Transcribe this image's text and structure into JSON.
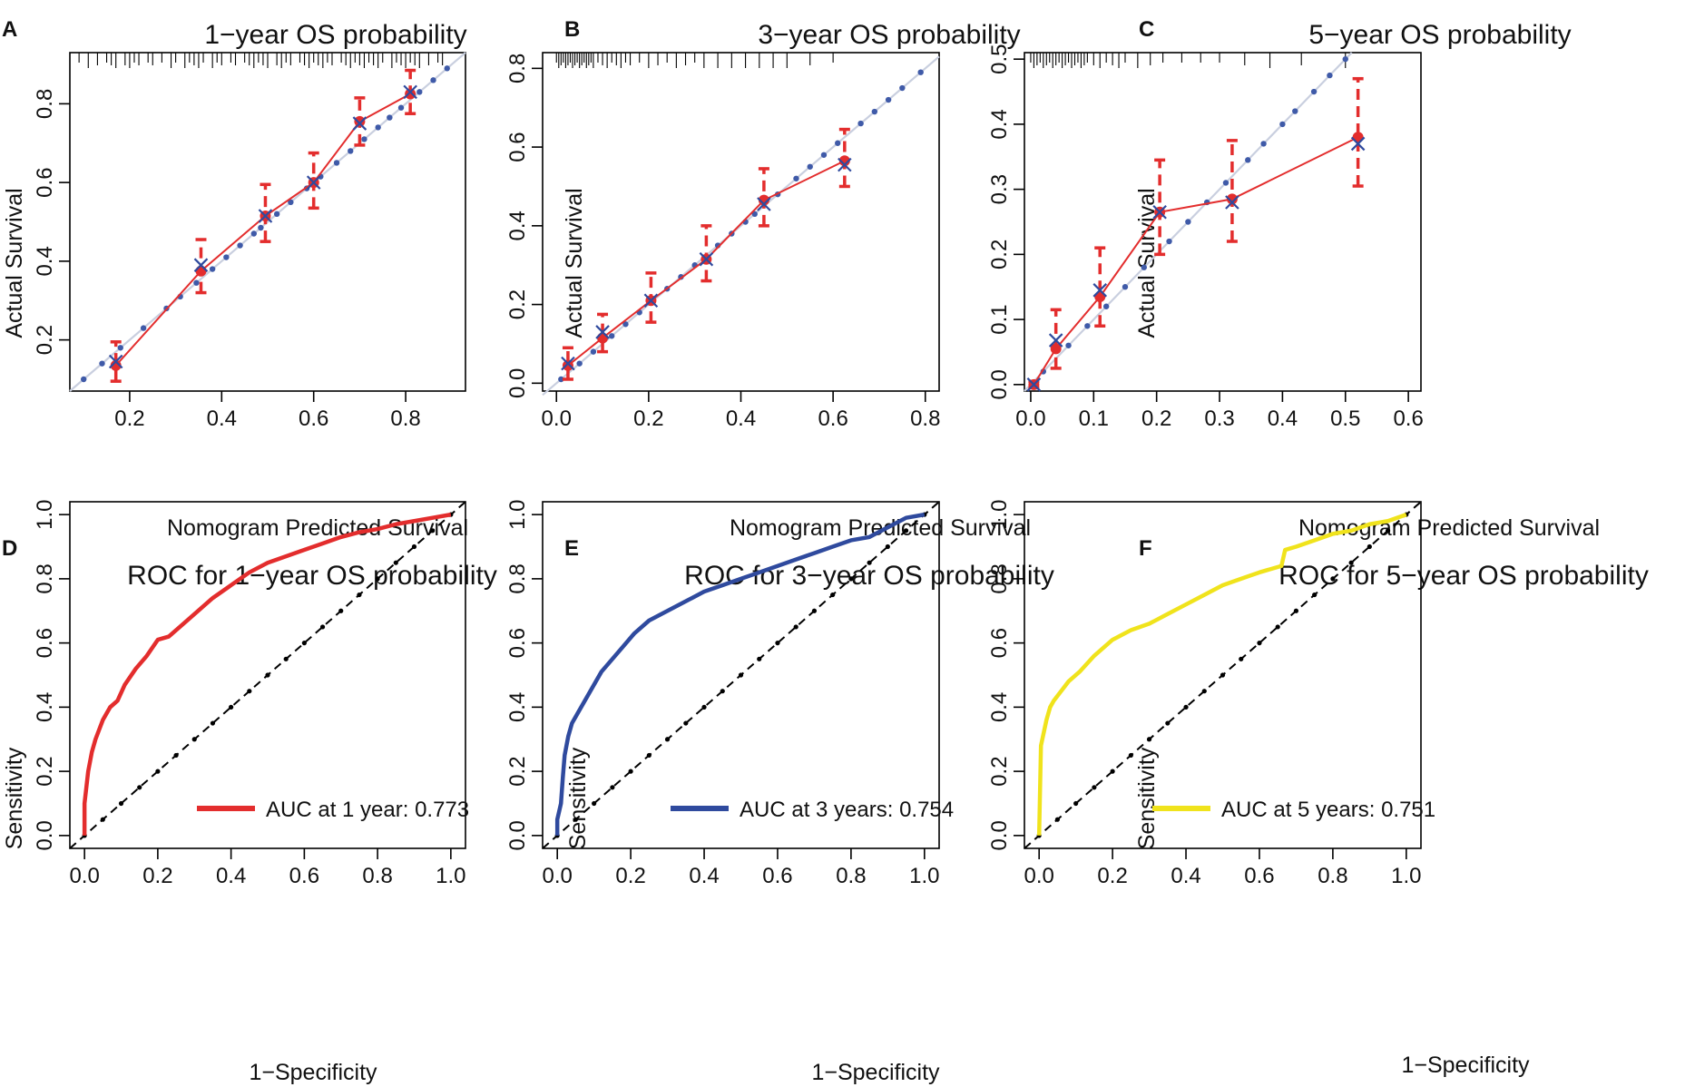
{
  "chart_data": [
    {
      "panel": "A",
      "type": "scatter",
      "title": "1−year OS probability",
      "xlabel": "Nomogram Predicted Survival",
      "ylabel": "Actual Survival",
      "xlim": [
        0.07,
        0.93
      ],
      "ylim": [
        0.07,
        0.93
      ],
      "xticks": [
        "0.2",
        "0.4",
        "0.6",
        "0.8"
      ],
      "yticks": [
        "0.2",
        "0.4",
        "0.6",
        "0.8"
      ],
      "ideal_line": [
        [
          0.07,
          0.07
        ],
        [
          0.93,
          0.93
        ]
      ],
      "series": [
        {
          "name": "observed",
          "x": [
            0.17,
            0.355,
            0.495,
            0.6,
            0.7,
            0.81
          ],
          "y": [
            0.135,
            0.375,
            0.515,
            0.6,
            0.755,
            0.825
          ],
          "ci_low": [
            0.095,
            0.32,
            0.45,
            0.535,
            0.695,
            0.775
          ],
          "ci_high": [
            0.195,
            0.455,
            0.595,
            0.675,
            0.815,
            0.885
          ]
        },
        {
          "name": "bias-corrected",
          "x": [
            0.17,
            0.355,
            0.495,
            0.6,
            0.7,
            0.81
          ],
          "y": [
            0.145,
            0.39,
            0.515,
            0.6,
            0.75,
            0.83
          ]
        }
      ],
      "apparent_x": [
        0.1,
        0.14,
        0.18,
        0.23,
        0.28,
        0.31,
        0.345,
        0.38,
        0.41,
        0.44,
        0.47,
        0.485,
        0.52,
        0.55,
        0.585,
        0.615,
        0.65,
        0.68,
        0.71,
        0.74,
        0.765,
        0.79,
        0.83,
        0.86,
        0.89
      ],
      "rug": [
        0.09,
        0.11,
        0.13,
        0.15,
        0.16,
        0.17,
        0.19,
        0.2,
        0.21,
        0.22,
        0.24,
        0.25,
        0.27,
        0.29,
        0.3,
        0.32,
        0.33,
        0.34,
        0.35,
        0.36,
        0.38,
        0.39,
        0.4,
        0.42,
        0.43,
        0.45,
        0.46,
        0.47,
        0.48,
        0.49,
        0.5,
        0.52,
        0.53,
        0.54,
        0.55,
        0.57,
        0.58,
        0.59,
        0.6,
        0.61,
        0.62,
        0.63,
        0.64,
        0.66,
        0.67,
        0.68,
        0.69,
        0.7,
        0.71,
        0.72,
        0.73,
        0.74,
        0.75,
        0.77,
        0.78,
        0.79,
        0.8,
        0.81,
        0.82,
        0.83,
        0.85,
        0.87,
        0.88
      ]
    },
    {
      "panel": "B",
      "type": "scatter",
      "title": "3−year OS probability",
      "xlabel": "Nomogram Predicted Survival",
      "ylabel": "Actual Survival",
      "xlim": [
        -0.03,
        0.83
      ],
      "ylim": [
        -0.02,
        0.84
      ],
      "xticks": [
        "0.0",
        "0.2",
        "0.4",
        "0.6",
        "0.8"
      ],
      "yticks": [
        "0.0",
        "0.2",
        "0.4",
        "0.6",
        "0.8"
      ],
      "ideal_line": [
        [
          -0.03,
          -0.03
        ],
        [
          0.83,
          0.83
        ]
      ],
      "series": [
        {
          "name": "observed",
          "x": [
            0.025,
            0.1,
            0.205,
            0.325,
            0.45,
            0.625
          ],
          "y": [
            0.045,
            0.115,
            0.21,
            0.315,
            0.465,
            0.565
          ],
          "ci_low": [
            0.01,
            0.08,
            0.155,
            0.26,
            0.4,
            0.5
          ],
          "ci_high": [
            0.09,
            0.175,
            0.28,
            0.4,
            0.545,
            0.645
          ]
        },
        {
          "name": "bias-corrected",
          "x": [
            0.025,
            0.1,
            0.205,
            0.325,
            0.45,
            0.625
          ],
          "y": [
            0.05,
            0.13,
            0.21,
            0.315,
            0.455,
            0.555
          ]
        }
      ],
      "apparent_x": [
        0.01,
        0.05,
        0.08,
        0.12,
        0.15,
        0.18,
        0.24,
        0.27,
        0.3,
        0.35,
        0.38,
        0.41,
        0.43,
        0.48,
        0.52,
        0.55,
        0.58,
        0.61,
        0.66,
        0.69,
        0.72,
        0.75,
        0.79
      ],
      "rug": [
        0.0,
        0.005,
        0.01,
        0.015,
        0.02,
        0.025,
        0.03,
        0.035,
        0.04,
        0.045,
        0.05,
        0.055,
        0.06,
        0.065,
        0.07,
        0.075,
        0.08,
        0.09,
        0.1,
        0.11,
        0.12,
        0.13,
        0.14,
        0.15,
        0.16,
        0.18,
        0.2,
        0.22,
        0.24,
        0.26,
        0.28,
        0.3,
        0.32,
        0.35,
        0.38,
        0.41,
        0.44,
        0.47,
        0.5,
        0.55,
        0.6
      ]
    },
    {
      "panel": "C",
      "type": "scatter",
      "title": "5−year OS probability",
      "xlabel": "Nomogram Predicted Survival",
      "ylabel": "Actual Survival",
      "xlim": [
        -0.01,
        0.62
      ],
      "ylim": [
        -0.01,
        0.51
      ],
      "xticks": [
        "0.0",
        "0.1",
        "0.2",
        "0.3",
        "0.4",
        "0.5",
        "0.6"
      ],
      "yticks": [
        "0.0",
        "0.1",
        "0.2",
        "0.3",
        "0.4",
        "0.5"
      ],
      "ideal_line": [
        [
          -0.01,
          -0.01
        ],
        [
          0.51,
          0.51
        ]
      ],
      "series": [
        {
          "name": "observed",
          "x": [
            0.005,
            0.04,
            0.11,
            0.205,
            0.32,
            0.52
          ],
          "y": [
            0.0,
            0.055,
            0.135,
            0.265,
            0.285,
            0.38
          ],
          "ci_low": [
            -0.005,
            0.025,
            0.09,
            0.2,
            0.22,
            0.305
          ],
          "ci_high": [
            0.005,
            0.115,
            0.21,
            0.345,
            0.375,
            0.47
          ]
        },
        {
          "name": "bias-corrected",
          "x": [
            0.005,
            0.04,
            0.11,
            0.205,
            0.32,
            0.52
          ],
          "y": [
            0.0,
            0.068,
            0.145,
            0.265,
            0.28,
            0.37
          ]
        }
      ],
      "apparent_x": [
        0.02,
        0.06,
        0.09,
        0.12,
        0.15,
        0.18,
        0.22,
        0.25,
        0.28,
        0.31,
        0.345,
        0.37,
        0.4,
        0.42,
        0.45,
        0.475,
        0.5
      ],
      "rug": [
        0.0,
        0.005,
        0.01,
        0.015,
        0.02,
        0.025,
        0.03,
        0.035,
        0.04,
        0.045,
        0.05,
        0.055,
        0.06,
        0.065,
        0.07,
        0.075,
        0.08,
        0.085,
        0.09,
        0.1,
        0.11,
        0.12,
        0.13,
        0.14,
        0.15,
        0.17,
        0.19,
        0.21,
        0.24,
        0.27,
        0.3,
        0.34,
        0.38,
        0.43,
        0.5
      ]
    },
    {
      "panel": "D",
      "type": "line",
      "title": "ROC for 1−year OS probability",
      "xlabel": "1−Specificity",
      "ylabel": "Sensitivity",
      "xlim": [
        -0.04,
        1.04
      ],
      "ylim": [
        -0.04,
        1.04
      ],
      "xticks": [
        "0.0",
        "0.2",
        "0.4",
        "0.6",
        "0.8",
        "1.0"
      ],
      "yticks": [
        "0.0",
        "0.2",
        "0.4",
        "0.6",
        "0.8",
        "1.0"
      ],
      "color": "#e32d2d",
      "legend": "AUC at 1 year: 0.773",
      "legend_position": "bottom-right",
      "x": [
        0,
        0.0,
        0.01,
        0.02,
        0.03,
        0.04,
        0.05,
        0.07,
        0.09,
        0.11,
        0.14,
        0.17,
        0.2,
        0.23,
        0.27,
        0.3,
        0.35,
        0.4,
        0.45,
        0.5,
        0.55,
        0.6,
        0.65,
        0.7,
        0.75,
        0.8,
        0.85,
        0.9,
        0.95,
        1.0
      ],
      "y": [
        0,
        0.1,
        0.2,
        0.26,
        0.3,
        0.33,
        0.36,
        0.4,
        0.42,
        0.47,
        0.52,
        0.56,
        0.61,
        0.62,
        0.66,
        0.69,
        0.74,
        0.78,
        0.82,
        0.85,
        0.87,
        0.89,
        0.91,
        0.93,
        0.945,
        0.955,
        0.97,
        0.98,
        0.99,
        1.0
      ]
    },
    {
      "panel": "E",
      "type": "line",
      "title": "ROC for 3−year OS probability",
      "xlabel": "1−Specificity",
      "ylabel": "Sensitivity",
      "xlim": [
        -0.04,
        1.04
      ],
      "ylim": [
        -0.04,
        1.04
      ],
      "xticks": [
        "0.0",
        "0.2",
        "0.4",
        "0.6",
        "0.8",
        "1.0"
      ],
      "yticks": [
        "0.0",
        "0.2",
        "0.4",
        "0.6",
        "0.8",
        "1.0"
      ],
      "color": "#2f4a9e",
      "legend": "AUC at 3 years: 0.754",
      "legend_position": "bottom-right",
      "x": [
        0,
        0.0,
        0.01,
        0.015,
        0.02,
        0.03,
        0.04,
        0.06,
        0.08,
        0.1,
        0.12,
        0.15,
        0.18,
        0.21,
        0.25,
        0.3,
        0.35,
        0.4,
        0.45,
        0.5,
        0.55,
        0.6,
        0.65,
        0.7,
        0.75,
        0.8,
        0.85,
        0.9,
        0.95,
        1.0
      ],
      "y": [
        0,
        0.05,
        0.1,
        0.18,
        0.25,
        0.31,
        0.35,
        0.39,
        0.43,
        0.47,
        0.51,
        0.55,
        0.59,
        0.63,
        0.67,
        0.7,
        0.73,
        0.76,
        0.78,
        0.8,
        0.82,
        0.84,
        0.86,
        0.88,
        0.9,
        0.92,
        0.93,
        0.96,
        0.99,
        1.0
      ]
    },
    {
      "panel": "F",
      "type": "line",
      "title": "ROC for 5−year OS probability",
      "xlabel": "1−Specificity",
      "ylabel": "Sensitivity",
      "xlim": [
        -0.04,
        1.04
      ],
      "ylim": [
        -0.04,
        1.04
      ],
      "xticks": [
        "0.0",
        "0.2",
        "0.4",
        "0.6",
        "0.8",
        "1.0"
      ],
      "yticks": [
        "0.0",
        "0.2",
        "0.4",
        "0.6",
        "0.8",
        "1.0"
      ],
      "color": "#f0e31c",
      "legend": "AUC at 5 years: 0.751",
      "legend_position": "bottom-right",
      "x": [
        0,
        0.0,
        0.005,
        0.02,
        0.03,
        0.04,
        0.06,
        0.08,
        0.11,
        0.15,
        0.2,
        0.25,
        0.3,
        0.35,
        0.4,
        0.45,
        0.5,
        0.55,
        0.6,
        0.66,
        0.67,
        0.7,
        0.75,
        0.8,
        0.85,
        0.9,
        0.95,
        1.0
      ],
      "y": [
        0,
        0.0,
        0.28,
        0.36,
        0.4,
        0.42,
        0.45,
        0.48,
        0.51,
        0.56,
        0.61,
        0.64,
        0.66,
        0.69,
        0.72,
        0.75,
        0.78,
        0.8,
        0.82,
        0.84,
        0.89,
        0.9,
        0.92,
        0.94,
        0.95,
        0.97,
        0.98,
        1.0
      ]
    }
  ],
  "panels": [
    {
      "letter": "A",
      "title": "1−year OS probability",
      "xlabel": "Nomogram Predicted Survival",
      "ylabel": "Actual Survival"
    },
    {
      "letter": "B",
      "title": "3−year OS probability",
      "xlabel": "Nomogram Predicted Survival",
      "ylabel": "Actual Survival"
    },
    {
      "letter": "C",
      "title": "5−year OS probability",
      "xlabel": "Nomogram Predicted Survival",
      "ylabel": "Actual Survival"
    },
    {
      "letter": "D",
      "title": "ROC for 1−year OS probability",
      "xlabel": "1−Specificity",
      "ylabel": "Sensitivity",
      "legend": "AUC at 1 year: 0.773"
    },
    {
      "letter": "E",
      "title": "ROC for 3−year OS probability",
      "xlabel": "1−Specificity",
      "ylabel": "Sensitivity",
      "legend": "AUC at 3 years: 0.754"
    },
    {
      "letter": "F",
      "title": "ROC for 5−year OS probability",
      "xlabel": "1−Specificity",
      "ylabel": "Sensitivity",
      "legend": "AUC at 5 years: 0.751"
    }
  ],
  "colors": {
    "observed": "#e32d2d",
    "corrected": "#2f4a9e",
    "apparent": "#3f5aa8",
    "ideal": "#c9cfdf",
    "diagonal": "#000000"
  }
}
